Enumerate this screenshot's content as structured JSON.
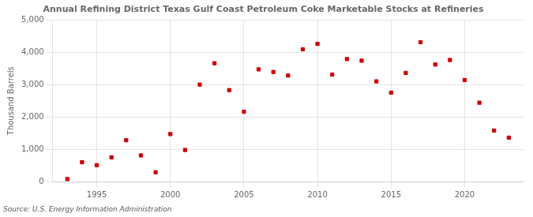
{
  "chart_data": {
    "type": "scatter",
    "title": "Annual Refining District Texas Gulf Coast Petroleum Coke Marketable Stocks at Refineries",
    "ylabel": "Thousand Barrels",
    "source": "Source: U.S. Energy Information Administration",
    "x": [
      1993,
      1994,
      1995,
      1996,
      1997,
      1998,
      1999,
      2000,
      2001,
      2002,
      2003,
      2004,
      2005,
      2006,
      2007,
      2008,
      2009,
      2010,
      2011,
      2012,
      2013,
      2014,
      2015,
      2016,
      2017,
      2018,
      2019,
      2020,
      2021,
      2022,
      2023
    ],
    "values": [
      80,
      600,
      510,
      750,
      1280,
      810,
      290,
      1470,
      980,
      3000,
      3660,
      2830,
      2160,
      3470,
      3390,
      3280,
      4090,
      4260,
      3310,
      3790,
      3740,
      3100,
      2750,
      3360,
      4310,
      3620,
      3760,
      3140,
      2440,
      1580,
      1360
    ],
    "color": "#cc0000",
    "marker": "square",
    "xlim": [
      1992,
      2024
    ],
    "xticks": [
      1995,
      2000,
      2005,
      2010,
      2015,
      2020
    ],
    "ylim": [
      0,
      5000
    ],
    "yticks": [
      0,
      {
        "value": 1000,
        "label": "1,000"
      },
      {
        "value": 2000,
        "label": "2,000"
      },
      {
        "value": 3000,
        "label": "3,000"
      },
      {
        "value": 4000,
        "label": "4,000"
      },
      {
        "value": 5000,
        "label": "5,000"
      }
    ],
    "grid": true
  }
}
